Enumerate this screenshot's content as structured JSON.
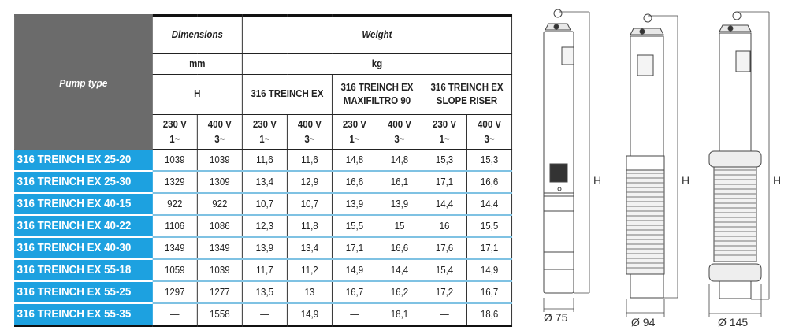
{
  "table": {
    "pump_type_header": "Pump type",
    "dimensions_header": "Dimensions",
    "weight_header": "Weight",
    "dimensions_unit": "mm",
    "weight_unit": "kg",
    "dimension_param": "H",
    "weight_variants": [
      "316 TREINCH EX",
      "316 TREINCH EX MAXIFILTRO 90",
      "316 TREINCH EX SLOPE RISER"
    ],
    "weight_variant_lines": [
      [
        "316 TREINCH EX"
      ],
      [
        "316 TREINCH EX",
        "MAXIFILTRO 90"
      ],
      [
        "316 TREINCH EX",
        "SLOPE RISER"
      ]
    ],
    "voltages": [
      {
        "v": "230 V",
        "phase": "1~"
      },
      {
        "v": "400 V",
        "phase": "3~"
      }
    ],
    "rows": [
      {
        "name": "316 TREINCH EX 25-20",
        "values": [
          "1039",
          "1039",
          "11,6",
          "11,6",
          "14,8",
          "14,8",
          "15,3",
          "15,3"
        ]
      },
      {
        "name": "316 TREINCH EX 25-30",
        "values": [
          "1329",
          "1309",
          "13,4",
          "12,9",
          "16,6",
          "16,1",
          "17,1",
          "16,6"
        ]
      },
      {
        "name": "316 TREINCH EX 40-15",
        "values": [
          "922",
          "922",
          "10,7",
          "10,7",
          "13,9",
          "13,9",
          "14,4",
          "14,4"
        ]
      },
      {
        "name": "316 TREINCH EX 40-22",
        "values": [
          "1106",
          "1086",
          "12,3",
          "11,8",
          "15,5",
          "15",
          "16",
          "15,5"
        ]
      },
      {
        "name": "316 TREINCH EX 40-30",
        "values": [
          "1349",
          "1349",
          "13,9",
          "13,4",
          "17,1",
          "16,6",
          "17,6",
          "17,1"
        ]
      },
      {
        "name": "316 TREINCH EX 55-18",
        "values": [
          "1059",
          "1039",
          "11,7",
          "11,2",
          "14,9",
          "14,4",
          "15,4",
          "14,9"
        ]
      },
      {
        "name": "316 TREINCH EX 55-25",
        "values": [
          "1297",
          "1277",
          "13,5",
          "13",
          "16,7",
          "16,2",
          "17,2",
          "16,7"
        ]
      },
      {
        "name": "316 TREINCH EX 55-35",
        "values": [
          "—",
          "1558",
          "—",
          "14,9",
          "—",
          "18,1",
          "—",
          "18,6"
        ]
      }
    ]
  },
  "drawings": [
    {
      "height_label": "H",
      "diameter_label": "Ø 75"
    },
    {
      "height_label": "H",
      "diameter_label": "Ø 94"
    },
    {
      "height_label": "H",
      "diameter_label": "Ø 145"
    }
  ],
  "colors": {
    "header_gray": "#6b6b6b",
    "name_blue": "#1da1e0",
    "row_rule": "#7fc2e3"
  }
}
